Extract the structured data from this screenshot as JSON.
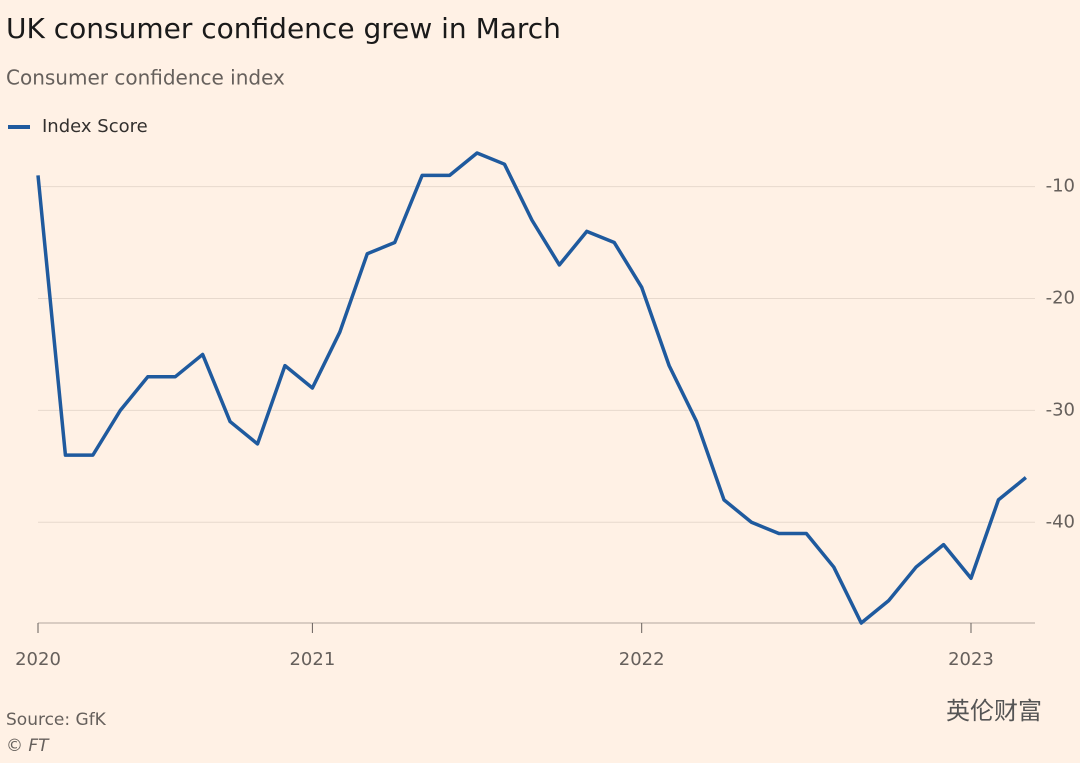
{
  "chart_data": {
    "type": "line",
    "title": "UK consumer confidence grew in March",
    "subtitle": "Consumer confidence index",
    "source": "Source: GfK",
    "credit": "© FT",
    "watermark": "英伦财富",
    "x": [
      2020.1667,
      2020.25,
      2020.3333,
      2020.4167,
      2020.5,
      2020.5833,
      2020.6667,
      2020.75,
      2020.8333,
      2020.9167,
      2021.0,
      2021.0833,
      2021.1667,
      2021.25,
      2021.3333,
      2021.4167,
      2021.5,
      2021.5833,
      2021.6667,
      2021.75,
      2021.8333,
      2021.9167,
      2022.0,
      2022.0833,
      2022.1667,
      2022.25,
      2022.3333,
      2022.4167,
      2022.5,
      2022.5833,
      2022.6667,
      2022.75,
      2022.8333,
      2022.9167,
      2023.0,
      2023.0833,
      2023.1667
    ],
    "series": [
      {
        "name": "Index Score",
        "color": "#1f5a9e",
        "values": [
          -9,
          -34,
          -34,
          -30,
          -27,
          -27,
          -25,
          -31,
          -33,
          -26,
          -28,
          -23,
          -16,
          -15,
          -9,
          -9,
          -7,
          -8,
          -13,
          -17,
          -14,
          -15,
          -19,
          -26,
          -31,
          -38,
          -40,
          -41,
          -41,
          -44,
          -49,
          -47,
          -44,
          -42,
          -45,
          -38,
          -36
        ]
      }
    ],
    "xlim": [
      2020.1667,
      2023.1944
    ],
    "xticks": [
      {
        "value": 2020.1667,
        "label": "2020"
      },
      2021,
      2022,
      2023
    ],
    "ylim": [
      -49,
      -7
    ],
    "yticks": [
      -10,
      -20,
      -30,
      -40
    ],
    "grid": true
  }
}
